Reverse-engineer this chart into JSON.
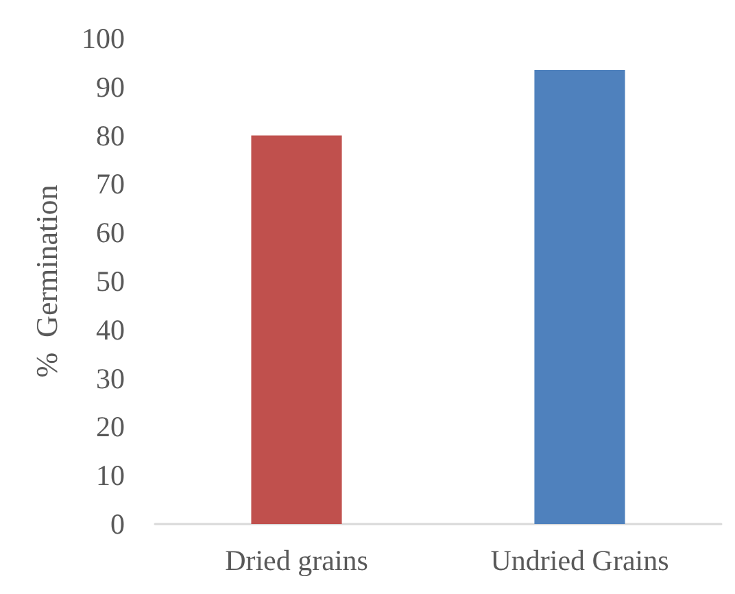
{
  "chart_data": {
    "type": "bar",
    "ylabel": "%  Germination",
    "categories": [
      "Dried grains",
      "Undried Grains"
    ],
    "values": [
      80,
      93.5
    ],
    "colors": [
      "#c0504d",
      "#4f81bd"
    ],
    "ylim": [
      0,
      100
    ],
    "yticks": [
      0,
      10,
      20,
      30,
      40,
      50,
      60,
      70,
      80,
      90,
      100
    ],
    "grid": false
  }
}
